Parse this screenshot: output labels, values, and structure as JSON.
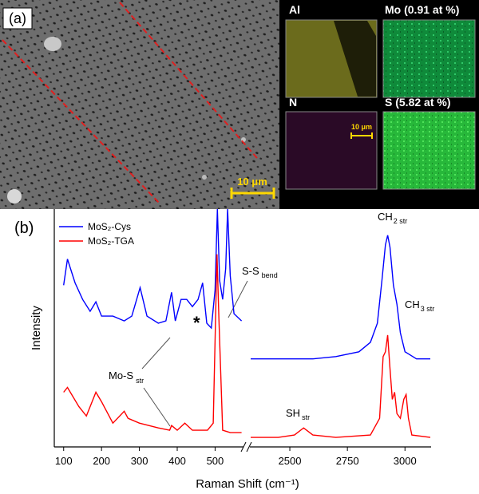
{
  "panel_a": {
    "label": "(a)",
    "scale_bar": "10 μm",
    "maps": [
      {
        "label": "Al"
      },
      {
        "label": "Mo (0.91 at %)"
      },
      {
        "label": "N",
        "scale_bar": "10 μm"
      },
      {
        "label": "S (5.82 at %)"
      }
    ]
  },
  "chart_data": {
    "type": "line",
    "panel_label": "(b)",
    "x_label": "Raman Shift (cm⁻¹)",
    "y_label": "Intensity",
    "xlim": [
      [
        90,
        575
      ],
      [
        2330,
        3110
      ]
    ],
    "ylim": [
      0,
      100
    ],
    "xticks": [
      100,
      200,
      300,
      400,
      500,
      2500,
      2750,
      3000
    ],
    "legend": "upper left",
    "series": [
      {
        "name": "MoS₂-Cys",
        "color": "#0000ff",
        "x": [
          100,
          110,
          130,
          150,
          170,
          185,
          200,
          230,
          260,
          280,
          302,
          320,
          350,
          370,
          385,
          395,
          410,
          425,
          440,
          455,
          467,
          478,
          490,
          500,
          506,
          512,
          520,
          528,
          533,
          540,
          550,
          570,
          null,
          2330,
          2400,
          2500,
          2600,
          2700,
          2800,
          2850,
          2880,
          2900,
          2915,
          2925,
          2935,
          2950,
          2965,
          2980,
          3000,
          3050,
          3110
        ],
        "values": [
          68,
          79,
          69,
          62,
          57,
          61,
          55,
          55,
          53,
          55,
          67,
          55,
          52,
          53,
          65,
          53,
          62,
          62,
          59,
          62,
          69,
          52,
          50,
          66,
          100,
          70,
          62,
          75,
          100,
          72,
          56,
          53,
          null,
          37,
          37,
          37,
          37,
          38,
          40,
          44,
          52,
          70,
          85,
          89,
          84,
          68,
          60,
          48,
          40,
          37,
          37
        ]
      },
      {
        "name": "MoS₂-TGA",
        "color": "#ff0000",
        "x": [
          100,
          110,
          140,
          160,
          185,
          200,
          230,
          260,
          270,
          300,
          350,
          380,
          385,
          400,
          420,
          440,
          480,
          495,
          505,
          510,
          520,
          540,
          570,
          null,
          2330,
          2450,
          2520,
          2560,
          2600,
          2700,
          2850,
          2890,
          2905,
          2915,
          2925,
          2935,
          2945,
          2955,
          2965,
          2980,
          2995,
          3005,
          3015,
          3030,
          3110
        ],
        "values": [
          23,
          25,
          17,
          13,
          23,
          19,
          10,
          15,
          12,
          10,
          8,
          7,
          9,
          7,
          10,
          7,
          7,
          10,
          81,
          54,
          7,
          6,
          6,
          null,
          4,
          4,
          5,
          8,
          5,
          4,
          5,
          12,
          38,
          40,
          47,
          33,
          20,
          23,
          14,
          12,
          20,
          22,
          12,
          5,
          4
        ]
      }
    ],
    "annotations": [
      {
        "text": "S-S",
        "sub": "bend"
      },
      {
        "text": "*"
      },
      {
        "text": "Mo-S",
        "sub": "str"
      },
      {
        "text": "CH",
        "sub": "2 str"
      },
      {
        "text": "CH",
        "sub": "3 str"
      },
      {
        "text": "SH",
        "sub": "str"
      }
    ]
  }
}
